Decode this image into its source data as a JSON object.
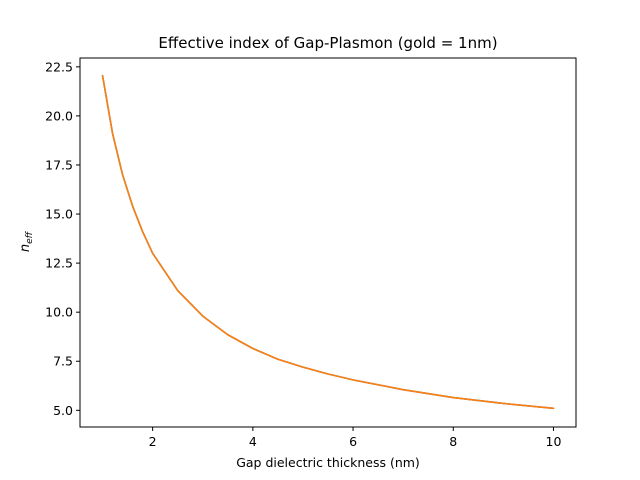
{
  "chart_data": {
    "type": "line",
    "title": "Effective index of Gap-Plasmon (gold = 1nm)",
    "xlabel": "Gap dielectric thickness (nm)",
    "ylabel_main": "n",
    "ylabel_sub": "eff",
    "xlim": [
      0.55,
      10.45
    ],
    "ylim": [
      4.15,
      22.95
    ],
    "x_ticks": [
      2,
      4,
      6,
      8,
      10
    ],
    "x_tick_labels": [
      "2",
      "4",
      "6",
      "8",
      "10"
    ],
    "y_ticks": [
      5.0,
      7.5,
      10.0,
      12.5,
      15.0,
      17.5,
      20.0,
      22.5
    ],
    "y_tick_labels": [
      "5.0",
      "7.5",
      "10.0",
      "12.5",
      "15.0",
      "17.5",
      "20.0",
      "22.5"
    ],
    "grid": false,
    "series": [
      {
        "color": "#1f77b4",
        "x": [
          1.0,
          1.2,
          1.4,
          1.6,
          1.8,
          2.0,
          2.5,
          3.0,
          3.5,
          4.0,
          4.5,
          5.0,
          5.5,
          6.0,
          7.0,
          8.0,
          9.0,
          10.0
        ],
        "y": [
          22.05,
          19.1,
          17.0,
          15.4,
          14.1,
          13.0,
          11.1,
          9.8,
          8.85,
          8.15,
          7.6,
          7.2,
          6.85,
          6.55,
          6.05,
          5.65,
          5.35,
          5.1
        ]
      },
      {
        "color": "#ff7f0e",
        "x": [
          1.0,
          1.2,
          1.4,
          1.6,
          1.8,
          2.0,
          2.5,
          3.0,
          3.5,
          4.0,
          4.5,
          5.0,
          5.5,
          6.0,
          7.0,
          8.0,
          9.0,
          10.0
        ],
        "y": [
          22.05,
          19.1,
          17.0,
          15.4,
          14.1,
          13.0,
          11.1,
          9.8,
          8.85,
          8.15,
          7.6,
          7.2,
          6.85,
          6.55,
          6.05,
          5.65,
          5.35,
          5.1
        ]
      }
    ]
  }
}
